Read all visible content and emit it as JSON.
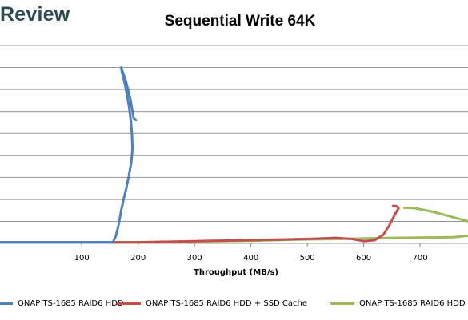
{
  "header": {
    "logo_text": "Review"
  },
  "chart_data": {
    "type": "line",
    "title": "Sequential Write 64K",
    "xlabel": "Throughput (MB/s)",
    "ylabel": "",
    "xlim": [
      -45,
      785
    ],
    "ylim": [
      0,
      9
    ],
    "x_ticks": [
      100,
      200,
      300,
      400,
      500,
      600,
      700
    ],
    "grid": "horizontal",
    "legend": "bottom",
    "series": [
      {
        "name": "QNAP TS-1685 RAID6 HDD",
        "color": "#4f81bd",
        "points": [
          [
            -45,
            0.05
          ],
          [
            155,
            0.05
          ],
          [
            160,
            0.3
          ],
          [
            165,
            0.8
          ],
          [
            170,
            1.5
          ],
          [
            175,
            2.1
          ],
          [
            178,
            2.4
          ],
          [
            183,
            3.0
          ],
          [
            188,
            3.7
          ],
          [
            190,
            4.3
          ],
          [
            189,
            5.0
          ],
          [
            187,
            5.6
          ],
          [
            184,
            6.2
          ],
          [
            180,
            6.8
          ],
          [
            176,
            7.3
          ],
          [
            172,
            7.7
          ],
          [
            170,
            8.0
          ],
          [
            178,
            7.4
          ],
          [
            186,
            6.6
          ],
          [
            192,
            5.7
          ],
          [
            196,
            5.6
          ]
        ]
      },
      {
        "name": "QNAP TS-1685 RAID6 HDD + SSD Cache",
        "color": "#c0504d",
        "points": [
          [
            -45,
            0.05
          ],
          [
            0,
            0.05
          ],
          [
            100,
            0.05
          ],
          [
            200,
            0.05
          ],
          [
            300,
            0.1
          ],
          [
            400,
            0.15
          ],
          [
            500,
            0.2
          ],
          [
            550,
            0.25
          ],
          [
            580,
            0.2
          ],
          [
            600,
            0.1
          ],
          [
            620,
            0.15
          ],
          [
            635,
            0.4
          ],
          [
            645,
            0.8
          ],
          [
            655,
            1.3
          ],
          [
            662,
            1.6
          ],
          [
            658,
            1.7
          ],
          [
            652,
            1.7
          ]
        ]
      },
      {
        "name": "QNAP TS-1685 RAID6 HDD",
        "color": "#9bbb59",
        "points": [
          [
            -45,
            0.05
          ],
          [
            0,
            0.05
          ],
          [
            200,
            0.05
          ],
          [
            400,
            0.12
          ],
          [
            500,
            0.18
          ],
          [
            550,
            0.2
          ],
          [
            600,
            0.22
          ],
          [
            650,
            0.25
          ],
          [
            700,
            0.26
          ],
          [
            760,
            0.28
          ],
          [
            785,
            0.35
          ]
        ],
        "points_upper": [
          [
            672,
            1.62
          ],
          [
            690,
            1.6
          ],
          [
            720,
            1.45
          ],
          [
            750,
            1.25
          ],
          [
            785,
            1.0
          ]
        ]
      }
    ]
  }
}
